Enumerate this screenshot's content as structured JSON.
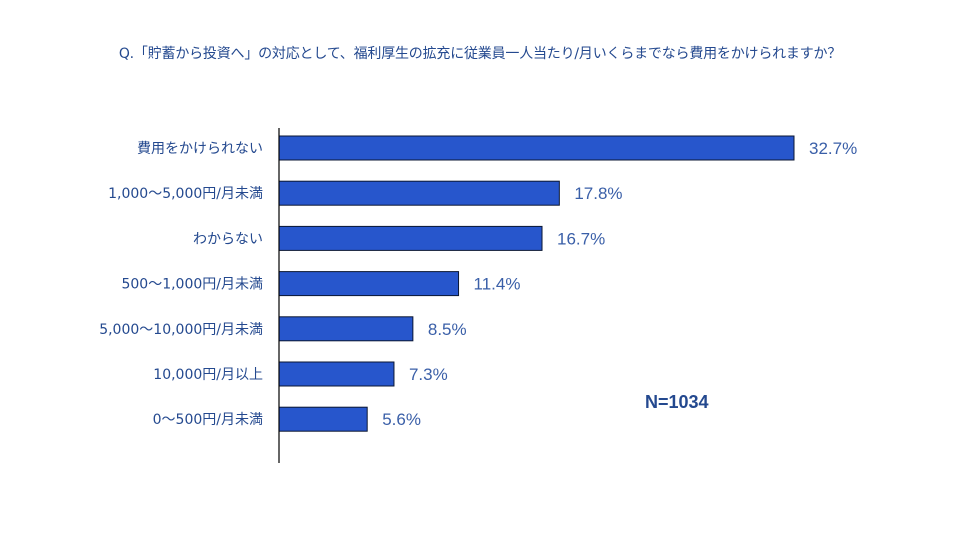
{
  "chart_data": {
    "type": "bar",
    "orientation": "horizontal",
    "title": "Q.「貯蓄から投資へ」の対応として、福利厚生の拡充に従業員一人当たり/月いくらまでなら費用をかけられますか？",
    "categories": [
      "費用をかけられない",
      "1,000〜5,000円/月未満",
      "わからない",
      "500〜1,000円/月未満",
      "5,000〜10,000円/月未満",
      "10,000円/月以上",
      "0〜500円/月未満"
    ],
    "values": [
      32.7,
      17.8,
      16.7,
      11.4,
      8.5,
      7.3,
      5.6
    ],
    "value_labels": [
      "32.7%",
      "17.8%",
      "16.7%",
      "11.4%",
      "8.5%",
      "7.3%",
      "5.6%"
    ],
    "unit": "%",
    "sample_size": "N=1034",
    "xlim": [
      0,
      35
    ],
    "grid": false,
    "legend": "none",
    "colors": {
      "bar_fill": "#2756cc",
      "bar_stroke": "#0b1733",
      "text": "#24498f",
      "axis": "#000000"
    }
  }
}
